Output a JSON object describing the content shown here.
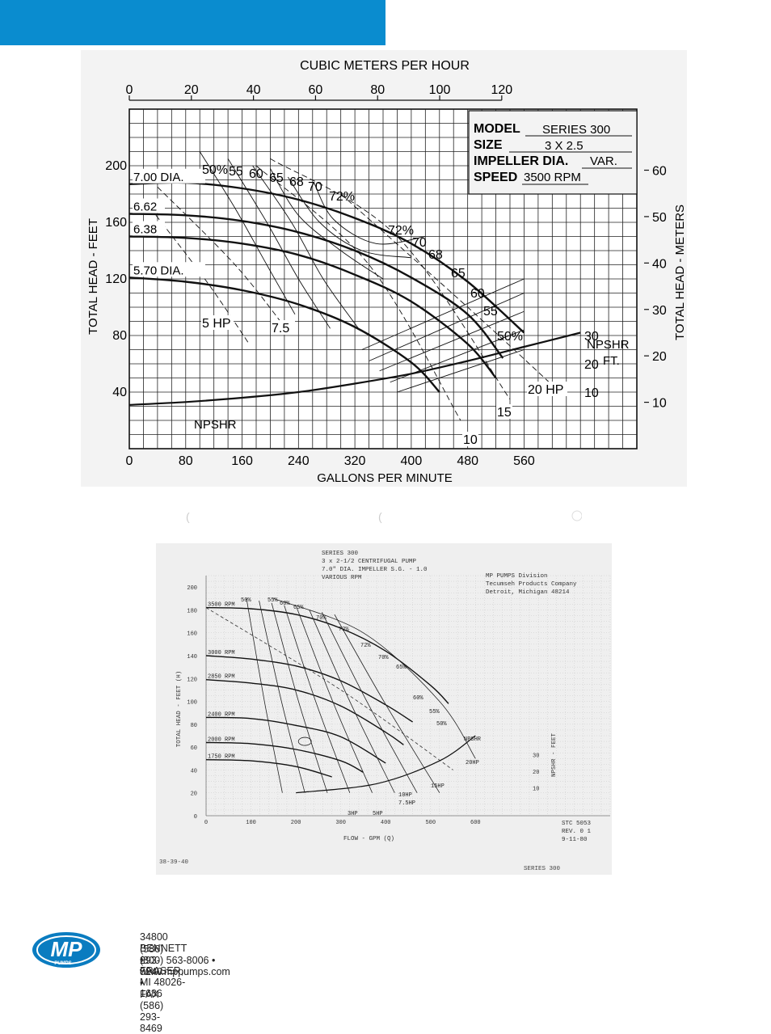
{
  "chart_data": [
    {
      "type": "line",
      "title": "",
      "top_axis_label": "CUBIC METERS PER HOUR",
      "top_ticks": [
        "0",
        "20",
        "40",
        "60",
        "80",
        "100",
        "120"
      ],
      "xlabel": "GALLONS PER MINUTE",
      "x_ticks": [
        "0",
        "80",
        "160",
        "240",
        "320",
        "400",
        "480",
        "560"
      ],
      "xlim": [
        0,
        720
      ],
      "ylabel": "TOTAL HEAD - FEET",
      "y_ticks": [
        "40",
        "80",
        "120",
        "160",
        "200"
      ],
      "ylim": [
        0,
        240
      ],
      "right_axis_label": "TOTAL HEAD - METERS",
      "right_ticks": [
        "10",
        "20",
        "30",
        "40",
        "50",
        "60"
      ],
      "info_box": {
        "model_label": "MODEL",
        "model_value": "SERIES 300",
        "size_label": "SIZE",
        "size_value": "3 X 2.5",
        "impeller_label": "IMPELLER DIA.",
        "impeller_value": "VAR.",
        "speed_label": "SPEED",
        "speed_value": "3500 RPM"
      },
      "series": [
        {
          "name": "7.00 DIA.",
          "x": [
            0,
            80,
            160,
            240,
            320,
            400,
            480,
            560
          ],
          "y": [
            187,
            188,
            184,
            176,
            163,
            145,
            118,
            82
          ]
        },
        {
          "name": "6.62",
          "x": [
            0,
            80,
            160,
            240,
            320,
            400,
            480,
            530
          ],
          "y": [
            166,
            165,
            161,
            153,
            140,
            121,
            95,
            64
          ]
        },
        {
          "name": "6.38",
          "x": [
            0,
            80,
            160,
            240,
            320,
            400,
            480,
            520
          ],
          "y": [
            150,
            149,
            145,
            137,
            123,
            104,
            74,
            50
          ]
        },
        {
          "name": "5.70 DIA.",
          "x": [
            0,
            80,
            160,
            240,
            320,
            400,
            440
          ],
          "y": [
            121,
            118,
            112,
            102,
            86,
            61,
            40
          ]
        }
      ],
      "npshr": {
        "name": "NPSHR",
        "unit": "FT.",
        "ticks": [
          "10",
          "20",
          "30"
        ],
        "x": [
          0,
          80,
          160,
          240,
          320,
          400,
          480,
          560,
          640
        ],
        "y_ft": [
          5.5,
          6.5,
          8,
          10,
          13,
          16.5,
          21,
          26,
          31
        ]
      },
      "curve_labels": {
        "efficiency_top": [
          "50%",
          "55",
          "60",
          "65",
          "68",
          "70",
          "72%"
        ],
        "efficiency_right": [
          "72%",
          "70",
          "68",
          "65",
          "60",
          "55",
          "50%"
        ],
        "horsepower": [
          "5 HP",
          "7.5",
          "10",
          "15",
          "20 HP"
        ]
      }
    },
    {
      "type": "line",
      "heading": [
        "SERIES 300",
        "3 x 2-1/2 CENTRIFUGAL PUMP",
        "7.0\" DIA. IMPELLER  S.G. - 1.0",
        "VARIOUS RPM"
      ],
      "company": [
        "MP PUMPS Division",
        "Tecumseh Products Company",
        "Detroit, Michigan  48214"
      ],
      "xlabel": "FLOW - GPM (Q)",
      "x_ticks": [
        "0",
        "100",
        "200",
        "300",
        "400",
        "500",
        "600"
      ],
      "xlim": [
        0,
        900
      ],
      "ylabel": "TOTAL HEAD - FEET (H)",
      "y_ticks": [
        "0",
        "20",
        "40",
        "60",
        "80",
        "100",
        "120",
        "140",
        "160",
        "180",
        "200"
      ],
      "ylim": [
        0,
        210
      ],
      "right_axis_label": "NPSHR - FEET",
      "right_ticks": [
        "10",
        "20",
        "30"
      ],
      "series": [
        {
          "name": "3500 RPM",
          "x": [
            0,
            100,
            200,
            300,
            400,
            500,
            540
          ],
          "y": [
            182,
            181,
            176,
            164,
            144,
            114,
            98
          ]
        },
        {
          "name": "3000 RPM",
          "x": [
            0,
            100,
            200,
            300,
            400,
            460
          ],
          "y": [
            140,
            137,
            131,
            118,
            97,
            82
          ]
        },
        {
          "name": "2850 RPM",
          "x": [
            0,
            100,
            200,
            300,
            400,
            440
          ],
          "y": [
            119,
            116,
            110,
            96,
            73,
            62
          ]
        },
        {
          "name": "2400 RPM",
          "x": [
            0,
            100,
            200,
            300,
            400
          ],
          "y": [
            86,
            85,
            79,
            69,
            46
          ]
        },
        {
          "name": "2000 RPM",
          "x": [
            0,
            100,
            200,
            300,
            350
          ],
          "y": [
            64,
            63,
            58,
            48,
            38
          ]
        },
        {
          "name": "1750 RPM",
          "x": [
            0,
            100,
            200,
            280
          ],
          "y": [
            49,
            48,
            43,
            34
          ]
        }
      ],
      "curve_labels": {
        "efficiency": [
          "50%",
          "55%",
          "60%",
          "65%",
          "70%",
          "72%",
          "72%",
          "70%",
          "65%",
          "60%",
          "55%",
          "50%"
        ],
        "horsepower": [
          "NPSHR",
          "20HP",
          "15HP",
          "10HP",
          "7.5HP",
          "3HP",
          "5HP"
        ]
      },
      "stamp": [
        "STC 5053",
        "REV. 0 1",
        "9-11-80"
      ],
      "doc_number": "38-39-40",
      "footer_series": "SERIES 300"
    }
  ],
  "footer": {
    "logo_text": "MP",
    "logo_subtext": "PUMPS",
    "address": "34800 BENNETT • FRASER, MI 48026-1686",
    "phone": "(586) 293-8240 • FAX (586) 293-8469",
    "tollfree": "(800) 563-8006 • www.mppumps.com"
  },
  "colors": {
    "header_bar": "#0a8ccf",
    "logo_blue": "#0a7cc0"
  }
}
